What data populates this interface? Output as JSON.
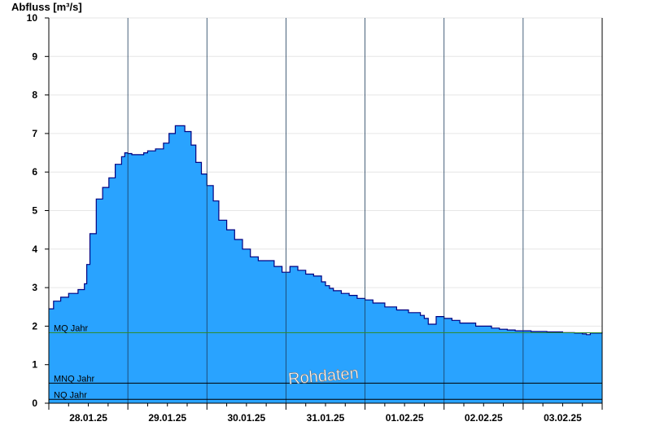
{
  "chart_data": {
    "type": "area",
    "ylabel": "Abfluss [m³/s]",
    "xlabel": "",
    "ylim": [
      0,
      10
    ],
    "yticks": [
      0,
      1,
      2,
      3,
      4,
      5,
      6,
      7,
      8,
      9,
      10
    ],
    "x_tick_labels": [
      "28.01.25",
      "29.01.25",
      "30.01.25",
      "31.01.25",
      "01.02.25",
      "02.02.25",
      "03.02.25"
    ],
    "x_range_days": [
      0,
      7
    ],
    "grid": true,
    "colors": {
      "fill": "#29a3ff",
      "line": "#000080",
      "mq_line": "#2e8b2e",
      "ref_line": "#000000"
    },
    "watermark": "Rohdaten",
    "reference_lines": [
      {
        "label": "MQ Jahr",
        "value": 1.83
      },
      {
        "label": "MNQ Jahr",
        "value": 0.52
      },
      {
        "label": "NQ Jahr",
        "value": 0.1
      }
    ],
    "series": [
      {
        "x": [
          0,
          0.06,
          0.15,
          0.25,
          0.37,
          0.45,
          0.48,
          0.52,
          0.6,
          0.68,
          0.76,
          0.84,
          0.92,
          0.96,
          0.98,
          1.0,
          1.05,
          1.1,
          1.2,
          1.25,
          1.35,
          1.45,
          1.52,
          1.6,
          1.65,
          1.72,
          1.8,
          1.86,
          1.93,
          2.0,
          2.08,
          2.15,
          2.25,
          2.35,
          2.45,
          2.55,
          2.65,
          2.75,
          2.85,
          2.95,
          3.05,
          3.15,
          3.25,
          3.35,
          3.45,
          3.5,
          3.55,
          3.6,
          3.7,
          3.8,
          3.9,
          4.0,
          4.1,
          4.25,
          4.4,
          4.55,
          4.7,
          4.75,
          4.8,
          4.9,
          5.0,
          5.1,
          5.2,
          5.4,
          5.6,
          5.7,
          5.8,
          5.9,
          6.0,
          6.1,
          6.3,
          6.5,
          6.65,
          6.75,
          6.8,
          6.85,
          7.0
        ],
        "y": [
          2.45,
          2.65,
          2.75,
          2.85,
          2.95,
          3.1,
          3.6,
          4.4,
          5.3,
          5.6,
          5.85,
          6.2,
          6.4,
          6.5,
          6.5,
          6.48,
          6.45,
          6.45,
          6.5,
          6.55,
          6.6,
          6.75,
          7.0,
          7.2,
          7.2,
          7.05,
          6.7,
          6.25,
          5.95,
          5.65,
          5.25,
          4.75,
          4.5,
          4.25,
          4.0,
          3.8,
          3.7,
          3.7,
          3.55,
          3.4,
          3.55,
          3.45,
          3.35,
          3.3,
          3.15,
          3.05,
          2.98,
          2.92,
          2.85,
          2.8,
          2.72,
          2.68,
          2.6,
          2.5,
          2.42,
          2.35,
          2.28,
          2.2,
          2.05,
          2.25,
          2.2,
          2.15,
          2.08,
          2.0,
          1.95,
          1.92,
          1.9,
          1.88,
          1.88,
          1.86,
          1.85,
          1.83,
          1.82,
          1.8,
          1.78,
          1.82,
          1.85
        ]
      }
    ]
  }
}
